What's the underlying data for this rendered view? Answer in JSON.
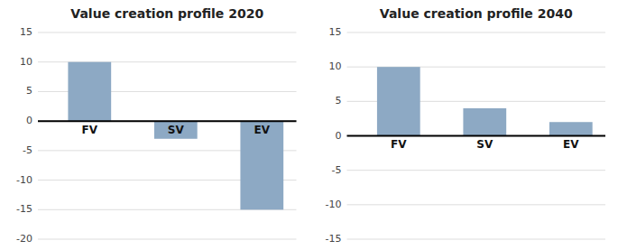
{
  "chart_data": [
    {
      "type": "bar",
      "title": "Value creation profile 2020",
      "categories": [
        "FV",
        "SV",
        "EV"
      ],
      "values": [
        10,
        -3,
        -15
      ],
      "color": "#8da9c4",
      "ylim": [
        -20,
        15
      ],
      "yticks": [
        -20,
        -15,
        -10,
        -5,
        0,
        5,
        10,
        15
      ],
      "grid": true
    },
    {
      "type": "bar",
      "title": "Value creation profile 2040",
      "categories": [
        "FV",
        "SV",
        "EV"
      ],
      "values": [
        10,
        4,
        2
      ],
      "color": "#8da9c4",
      "ylim": [
        -15,
        15
      ],
      "yticks": [
        -15,
        -10,
        -5,
        0,
        5,
        10,
        15
      ],
      "grid": true
    }
  ]
}
